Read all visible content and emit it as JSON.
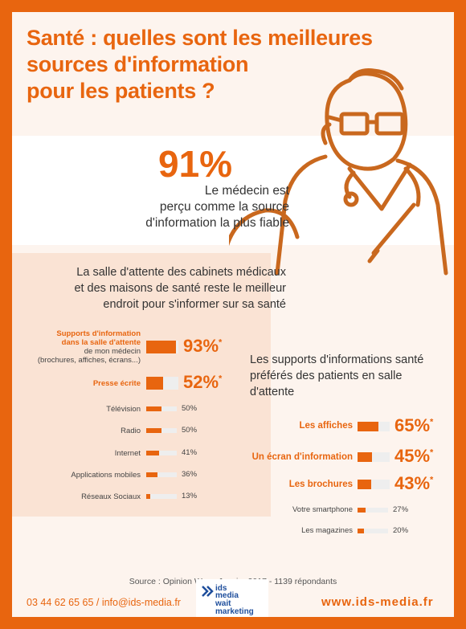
{
  "title": "Santé : quelles sont les meilleures sources d'information pour les patients ?",
  "title_lines": [
    "Santé : quelles sont les meilleures",
    "sources d'information",
    "pour les patients ?"
  ],
  "hero": {
    "percent": "91%",
    "text_lines": [
      "Le médecin est",
      "perçu comme la source",
      "d'information la plus fiable"
    ]
  },
  "salle": {
    "lines": [
      "La salle d'attente des cabinets médicaux",
      "et des maisons de santé reste le meilleur",
      "endroit pour s'informer sur sa santé"
    ]
  },
  "chart_data": [
    {
      "type": "bar",
      "categories": [
        "Supports d'information dans la salle d'attente de mon médecin (brochures, affiches, écrans...)",
        "Presse écrite",
        "Télévision",
        "Radio",
        "Internet",
        "Applications mobiles",
        "Réseaux Sociaux"
      ],
      "values": [
        93,
        52,
        50,
        50,
        41,
        36,
        13
      ],
      "value_labels": [
        "93%",
        "52%",
        "50%",
        "50%",
        "41%",
        "36%",
        "13%"
      ],
      "highlight": [
        true,
        true,
        false,
        false,
        false,
        false,
        false
      ]
    },
    {
      "type": "bar",
      "title": "Les supports d'informations santé préférés des patients en salle d'attente",
      "categories": [
        "Les affiches",
        "Un écran d'information",
        "Les brochures",
        "Votre smartphone",
        "Les magazines"
      ],
      "values": [
        65,
        45,
        43,
        27,
        20
      ],
      "value_labels": [
        "65%",
        "45%",
        "43%",
        "27%",
        "20%"
      ],
      "highlight": [
        true,
        true,
        true,
        false,
        false
      ]
    }
  ],
  "chart1_labels": {
    "l0_bold": "Supports d'information",
    "l0_bold2": "dans la salle d'attente",
    "l0_sub": "de mon médecin",
    "l0_sub2": "(brochures, affiches, écrans...)",
    "l1": "Presse écrite",
    "l2": "Télévision",
    "l3": "Radio",
    "l4": "Internet",
    "l5": "Applications mobiles",
    "l6": "Réseaux Sociaux"
  },
  "chart2_title_lines": [
    "Les supports d'informations santé",
    "préférés des patients en salle",
    "d'attente"
  ],
  "chart2_labels": {
    "l0": "Les affiches",
    "l1": "Un écran d'information",
    "l2": "Les brochures",
    "l3": "Votre smartphone",
    "l4": "Les magazines"
  },
  "footnote_mark": "*",
  "source": "Source : Opinion Way - Janvier 2017 - 1139 répondants",
  "footer": {
    "contact": "03 44 62 65 65 / info@ids-media.fr",
    "website": "www.ids-media.fr",
    "logo_lines": [
      "ids",
      "media",
      "wait",
      "marketing"
    ]
  },
  "colors": {
    "accent": "#e8650f",
    "background": "#fdf4ee",
    "panel": "#fae3d4",
    "logo": "#1e4e9c"
  },
  "icons": [
    "doctor-illustration",
    "ids-media-logo"
  ]
}
